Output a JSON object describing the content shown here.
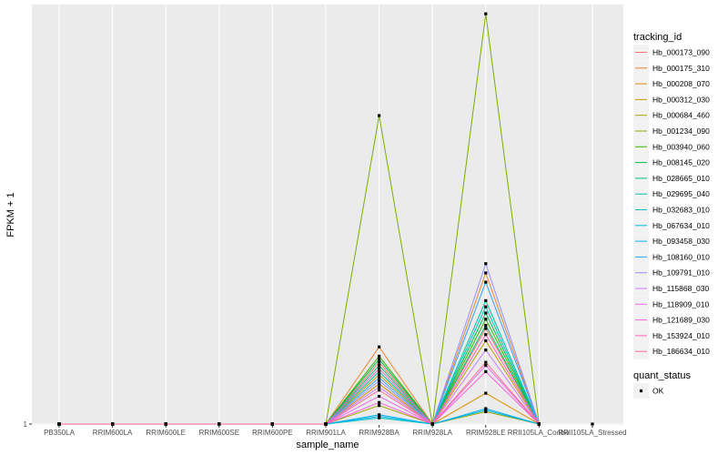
{
  "chart_data": {
    "type": "line",
    "xlabel": "sample_name",
    "ylabel": "FPKM + 1",
    "y_tick_labels": [
      "1"
    ],
    "y_ticks": [
      1
    ],
    "ylim": [
      0.97,
      14.6
    ],
    "grid": true,
    "legend_position": "right",
    "categories": [
      "PB350LA",
      "RRIM600LA",
      "RRIM600LE",
      "RRIM600SE",
      "RRIM600PE",
      "RRIM901LA",
      "RRIM928BA",
      "RRIM928LA",
      "RRIM928LE",
      "RRII105LA_Control",
      "RRII105LA_Stressed"
    ],
    "legend_color_title": "tracking_id",
    "legend_shape_title": "quant_status",
    "shape_legend": [
      {
        "label": "OK"
      }
    ],
    "series": [
      {
        "name": "Hb_000173_090",
        "color": "#F8766D",
        "values": [
          1,
          1,
          1,
          1,
          1,
          1,
          3.0,
          1,
          4.1,
          1,
          null
        ]
      },
      {
        "name": "Hb_000175_310",
        "color": "#EA8331",
        "values": [
          1,
          1,
          1,
          1,
          1,
          1,
          3.5,
          1,
          5.9,
          1,
          null
        ]
      },
      {
        "name": "Hb_000208_070",
        "color": "#D89000",
        "values": [
          1,
          1,
          1,
          1,
          1,
          1,
          2.3,
          1,
          2.0,
          1,
          null
        ]
      },
      {
        "name": "Hb_000312_030",
        "color": "#C09B00",
        "values": [
          1,
          1,
          1,
          1,
          1,
          1,
          2.6,
          1,
          3.7,
          1,
          null
        ]
      },
      {
        "name": "Hb_000684_460",
        "color": "#A3A500",
        "values": [
          1,
          1,
          1,
          1,
          1,
          1,
          1.6,
          1,
          1.4,
          1,
          null
        ]
      },
      {
        "name": "Hb_001234_090",
        "color": "#7CAE00",
        "values": [
          1,
          1,
          1,
          1,
          1,
          1,
          11.0,
          1,
          14.3,
          1,
          null
        ]
      },
      {
        "name": "Hb_003940_060",
        "color": "#39B600",
        "values": [
          1,
          1,
          1,
          1,
          1,
          1,
          3.2,
          1,
          4.4,
          1,
          null
        ]
      },
      {
        "name": "Hb_008145_020",
        "color": "#00BB4E",
        "values": [
          1,
          1,
          1,
          1,
          1,
          1,
          3.1,
          1,
          4.6,
          1,
          null
        ]
      },
      {
        "name": "Hb_028665_010",
        "color": "#00BF7D",
        "values": [
          1,
          1,
          1,
          1,
          1,
          1,
          2.9,
          1,
          4.2,
          1,
          null
        ]
      },
      {
        "name": "Hb_029695_040",
        "color": "#00C1A3",
        "values": [
          1,
          1,
          1,
          1,
          1,
          1,
          2.7,
          1,
          5.0,
          1,
          null
        ]
      },
      {
        "name": "Hb_032683_010",
        "color": "#00BFC4",
        "values": [
          1,
          1,
          1,
          1,
          1,
          1,
          1.2,
          1,
          4.8,
          1,
          null
        ]
      },
      {
        "name": "Hb_067634_010",
        "color": "#00BAE0",
        "values": [
          1,
          1,
          1,
          1,
          1,
          1,
          1.25,
          1,
          1.45,
          1,
          null
        ]
      },
      {
        "name": "Hb_093458_030",
        "color": "#00B0F6",
        "values": [
          1,
          1,
          1,
          1,
          1,
          1,
          1.3,
          1,
          1.5,
          1,
          null
        ]
      },
      {
        "name": "Hb_108160_010",
        "color": "#35A2FF",
        "values": [
          1,
          1,
          1,
          1,
          1,
          1,
          2.5,
          1,
          5.6,
          1,
          null
        ]
      },
      {
        "name": "Hb_109791_010",
        "color": "#9590FF",
        "values": [
          1,
          1,
          1,
          1,
          1,
          1,
          2.4,
          1,
          6.2,
          1,
          null
        ]
      },
      {
        "name": "Hb_115868_030",
        "color": "#C77CFF",
        "values": [
          1,
          1,
          1,
          1,
          1,
          1,
          2.2,
          1,
          3.4,
          1,
          null
        ]
      },
      {
        "name": "Hb_118909_010",
        "color": "#E76BF3",
        "values": [
          1,
          1,
          1,
          1,
          1,
          1,
          1.9,
          1,
          2.9,
          1,
          null
        ]
      },
      {
        "name": "Hb_121689_030",
        "color": "#FA62DB",
        "values": [
          1,
          1,
          1,
          1,
          1,
          1,
          1.7,
          1,
          2.7,
          1,
          null
        ]
      },
      {
        "name": "Hb_153924_010",
        "color": "#FF62BC",
        "values": [
          1,
          1,
          1,
          1,
          1,
          1,
          2.8,
          1,
          3.9,
          1,
          null
        ]
      },
      {
        "name": "Hb_186634_010",
        "color": "#FF6C91",
        "values": [
          1,
          1,
          1,
          1,
          1,
          1,
          2.1,
          1,
          3.0,
          1,
          null
        ]
      }
    ]
  }
}
